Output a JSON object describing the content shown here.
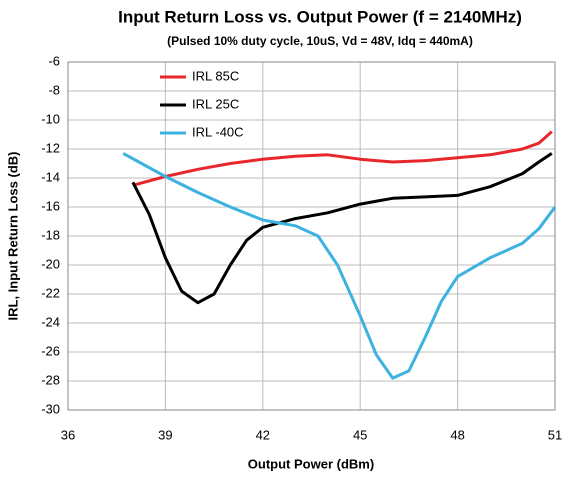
{
  "chart_data": {
    "type": "line",
    "title": "Input Return Loss vs. Output Power (f = 2140MHz)",
    "subtitle": "(Pulsed 10% duty cycle, 10uS, Vd = 48V, Idq = 440mA)",
    "xlabel": "Output Power (dBm)",
    "ylabel": "IRL, Input Return Loss (dB)",
    "xlim": [
      36,
      51
    ],
    "xticks": [
      36,
      39,
      42,
      45,
      48,
      51
    ],
    "ylim": [
      -30,
      -6
    ],
    "yticks": [
      -6,
      -8,
      -10,
      -12,
      -14,
      -16,
      -18,
      -20,
      -22,
      -24,
      -26,
      -28,
      -30
    ],
    "grid": true,
    "legend": "upper left",
    "series": [
      {
        "name": "IRL 85C",
        "color": "#e8262b",
        "x": [
          38,
          39,
          40,
          41,
          42,
          43,
          44,
          45,
          46,
          47,
          48,
          49,
          50,
          50.5,
          50.9
        ],
        "values": [
          -14.5,
          -13.9,
          -13.4,
          -13.0,
          -12.7,
          -12.5,
          -12.4,
          -12.7,
          -12.9,
          -12.8,
          -12.6,
          -12.4,
          -12.0,
          -11.6,
          -10.8
        ]
      },
      {
        "name": "IRL 25C",
        "color": "#000000",
        "x": [
          38,
          38.5,
          39,
          39.5,
          40,
          40.5,
          41,
          41.5,
          42,
          43,
          44,
          45,
          46,
          47,
          48,
          49,
          50,
          50.5,
          50.9
        ],
        "values": [
          -14.3,
          -16.5,
          -19.5,
          -21.8,
          -22.6,
          -22.0,
          -20.0,
          -18.3,
          -17.4,
          -16.8,
          -16.4,
          -15.8,
          -15.4,
          -15.3,
          -15.2,
          -14.6,
          -13.7,
          -12.9,
          -12.3
        ]
      },
      {
        "name": "IRL -40C",
        "color": "#3bb2e0",
        "x": [
          37.7,
          39,
          40,
          41,
          42,
          43,
          43.7,
          44.3,
          45,
          45.5,
          46,
          46.5,
          47,
          47.5,
          48,
          49,
          50,
          50.5,
          51
        ],
        "values": [
          -12.3,
          -13.9,
          -15.0,
          -16.0,
          -16.9,
          -17.3,
          -18.0,
          -20.0,
          -23.5,
          -26.2,
          -27.8,
          -27.3,
          -25.0,
          -22.5,
          -20.8,
          -19.5,
          -18.5,
          -17.5,
          -16.0
        ]
      }
    ]
  }
}
